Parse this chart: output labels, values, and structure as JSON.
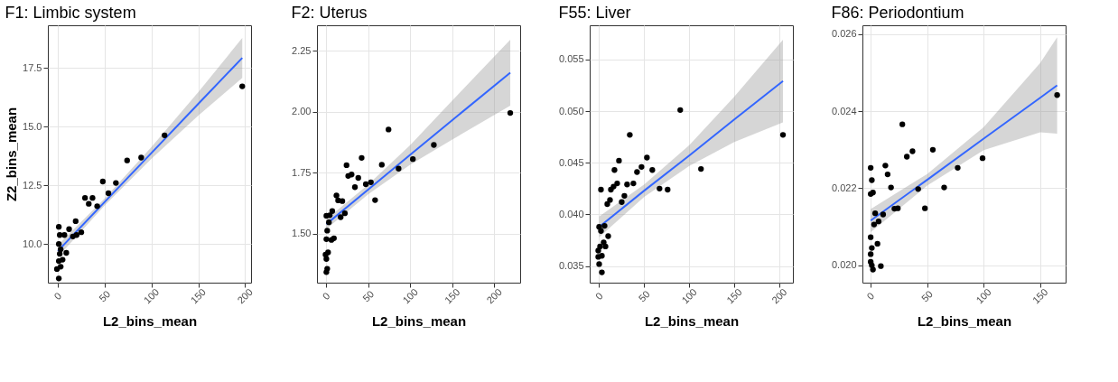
{
  "chart_data": [
    {
      "type": "scatter",
      "title": "F1: Limbic system",
      "xlabel": "L2_bins_mean",
      "ylabel": "Z2_bins_mean",
      "xlim": [
        -10.7,
        206.4
      ],
      "ylim": [
        8.35,
        19.32
      ],
      "xticks": [
        0,
        50,
        100,
        150,
        200
      ],
      "yticks": [
        {
          "value": 10,
          "label": "10.0"
        },
        {
          "value": 12.5,
          "label": "12.5"
        },
        {
          "value": 15,
          "label": "15.0"
        },
        {
          "value": 17.5,
          "label": "17.5"
        }
      ],
      "grid": true,
      "series": [
        {
          "type": "scatter",
          "marker": "circle",
          "color": "#000000",
          "x": [
            197,
            114,
            89,
            74,
            62,
            54,
            48,
            42,
            37,
            29,
            33,
            19,
            25,
            20,
            16,
            12,
            7,
            1,
            2,
            1,
            3,
            9,
            5,
            1,
            3,
            -1,
            1,
            2
          ],
          "values": [
            16.72,
            14.63,
            13.68,
            13.56,
            12.6,
            12.16,
            12.66,
            11.61,
            11.96,
            11.96,
            11.71,
            10.97,
            10.5,
            10.38,
            10.32,
            10.63,
            10.38,
            10.73,
            10.38,
            10.0,
            9.77,
            9.62,
            9.33,
            9.27,
            9.03,
            8.93,
            8.53,
            9.58
          ]
        },
        {
          "type": "line",
          "color": "#3366ff",
          "x": [
            0,
            50,
            100,
            150,
            197
          ],
          "values": [
            9.7,
            11.79,
            13.88,
            15.97,
            17.93
          ],
          "lower": [
            9.45,
            11.64,
            13.63,
            15.47,
            17.08
          ],
          "upper": [
            9.95,
            11.94,
            14.13,
            16.47,
            18.78
          ]
        }
      ]
    },
    {
      "type": "scatter",
      "title": "F2: Uterus",
      "xlabel": "L2_bins_mean",
      "xlim": [
        -11.2,
        230.8
      ],
      "ylim": [
        1.3,
        2.354
      ],
      "xticks": [
        0,
        50,
        100,
        150,
        200
      ],
      "yticks": [
        {
          "value": 1.5,
          "label": "1.50"
        },
        {
          "value": 1.75,
          "label": "1.75"
        },
        {
          "value": 2,
          "label": "2.00"
        },
        {
          "value": 2.25,
          "label": "2.25"
        }
      ],
      "grid": true,
      "series": [
        {
          "type": "scatter",
          "marker": "circle",
          "color": "#000000",
          "x": [
            219,
            128,
            103,
            86,
            74,
            66,
            58,
            53,
            47,
            42,
            38,
            34,
            30,
            26,
            24,
            22,
            17,
            19,
            12,
            14,
            7,
            4,
            0,
            3,
            1,
            9,
            6,
            0,
            2,
            -1,
            0,
            1,
            0
          ],
          "values": [
            1.995,
            1.864,
            1.806,
            1.767,
            1.927,
            1.783,
            1.638,
            1.711,
            1.703,
            1.811,
            1.729,
            1.691,
            1.743,
            1.737,
            1.781,
            1.584,
            1.568,
            1.634,
            1.657,
            1.637,
            1.593,
            1.576,
            1.574,
            1.547,
            1.513,
            1.482,
            1.475,
            1.478,
            1.424,
            1.415,
            1.397,
            1.357,
            1.343
          ]
        },
        {
          "type": "line",
          "color": "#3366ff",
          "x": [
            0,
            50,
            100,
            150,
            219
          ],
          "values": [
            1.54,
            1.682,
            1.824,
            1.966,
            2.16
          ],
          "lower": [
            1.52,
            1.662,
            1.784,
            1.886,
            2.025
          ],
          "upper": [
            1.56,
            1.702,
            1.864,
            2.046,
            2.295
          ]
        }
      ]
    },
    {
      "type": "scatter",
      "title": "F55: Liver",
      "xlabel": "L2_bins_mean",
      "xlim": [
        -10.5,
        215
      ],
      "ylim": [
        0.0334,
        0.0583
      ],
      "xticks": [
        0,
        50,
        100,
        150,
        200
      ],
      "yticks": [
        {
          "value": 0.035,
          "label": "0.035"
        },
        {
          "value": 0.04,
          "label": "0.040"
        },
        {
          "value": 0.045,
          "label": "0.045"
        },
        {
          "value": 0.05,
          "label": "0.050"
        },
        {
          "value": 0.055,
          "label": "0.055"
        }
      ],
      "grid": true,
      "series": [
        {
          "type": "scatter",
          "marker": "circle",
          "color": "#000000",
          "x": [
            204,
            113,
            90,
            76,
            67,
            59,
            53,
            47,
            42,
            38,
            31,
            34,
            28,
            25,
            22,
            17,
            20,
            16,
            13,
            12,
            9,
            2,
            6,
            0,
            2,
            10,
            7,
            5,
            1,
            -1,
            3,
            -1,
            0,
            3
          ],
          "values": [
            0.0477,
            0.0444,
            0.0501,
            0.0424,
            0.0425,
            0.0443,
            0.0455,
            0.0446,
            0.0441,
            0.043,
            0.0429,
            0.0477,
            0.0418,
            0.0412,
            0.0452,
            0.0443,
            0.043,
            0.0427,
            0.0424,
            0.0414,
            0.041,
            0.0424,
            0.0389,
            0.0388,
            0.0384,
            0.0379,
            0.0369,
            0.0373,
            0.0369,
            0.0365,
            0.036,
            0.0359,
            0.0352,
            0.0344
          ]
        },
        {
          "type": "line",
          "color": "#3366ff",
          "x": [
            0,
            50,
            100,
            150,
            204
          ],
          "values": [
            0.0388,
            0.0423,
            0.0457,
            0.0492,
            0.0529
          ],
          "lower": [
            0.0378,
            0.0417,
            0.0447,
            0.047,
            0.0489
          ],
          "upper": [
            0.0398,
            0.0429,
            0.0467,
            0.0514,
            0.0569
          ]
        }
      ]
    },
    {
      "type": "scatter",
      "title": "F86: Periodontium",
      "xlabel": "L2_bins_mean",
      "xlim": [
        -7.3,
        172.5
      ],
      "ylim": [
        0.01955,
        0.02623
      ],
      "xticks": [
        0,
        50,
        100,
        150
      ],
      "yticks": [
        {
          "value": 0.02,
          "label": "0.020"
        },
        {
          "value": 0.022,
          "label": "0.022"
        },
        {
          "value": 0.024,
          "label": "0.024"
        },
        {
          "value": 0.026,
          "label": "0.026"
        }
      ],
      "grid": true,
      "series": [
        {
          "type": "scatter",
          "marker": "circle",
          "color": "#000000",
          "x": [
            165,
            99,
            77,
            65,
            55,
            48,
            42,
            37,
            32,
            28,
            24,
            21,
            18,
            15,
            13,
            11,
            7,
            4,
            3,
            0,
            1,
            2,
            0,
            0,
            1,
            6,
            0,
            0,
            1,
            2,
            9
          ],
          "values": [
            0.02442,
            0.02278,
            0.02253,
            0.02202,
            0.023,
            0.02148,
            0.02198,
            0.02296,
            0.02282,
            0.02366,
            0.02148,
            0.02147,
            0.02202,
            0.02236,
            0.02259,
            0.02132,
            0.02114,
            0.02135,
            0.02106,
            0.02253,
            0.02221,
            0.02189,
            0.02185,
            0.02073,
            0.02045,
            0.02056,
            0.02029,
            0.02009,
            0.02,
            0.01989,
            0.01998
          ]
        },
        {
          "type": "line",
          "color": "#3366ff",
          "x": [
            0,
            50,
            100,
            150,
            165
          ],
          "values": [
            0.02116,
            0.02222,
            0.02329,
            0.02435,
            0.02467
          ],
          "lower": [
            0.02086,
            0.02207,
            0.02299,
            0.02345,
            0.02342
          ],
          "upper": [
            0.02146,
            0.02237,
            0.02359,
            0.02525,
            0.02592
          ]
        }
      ]
    }
  ]
}
